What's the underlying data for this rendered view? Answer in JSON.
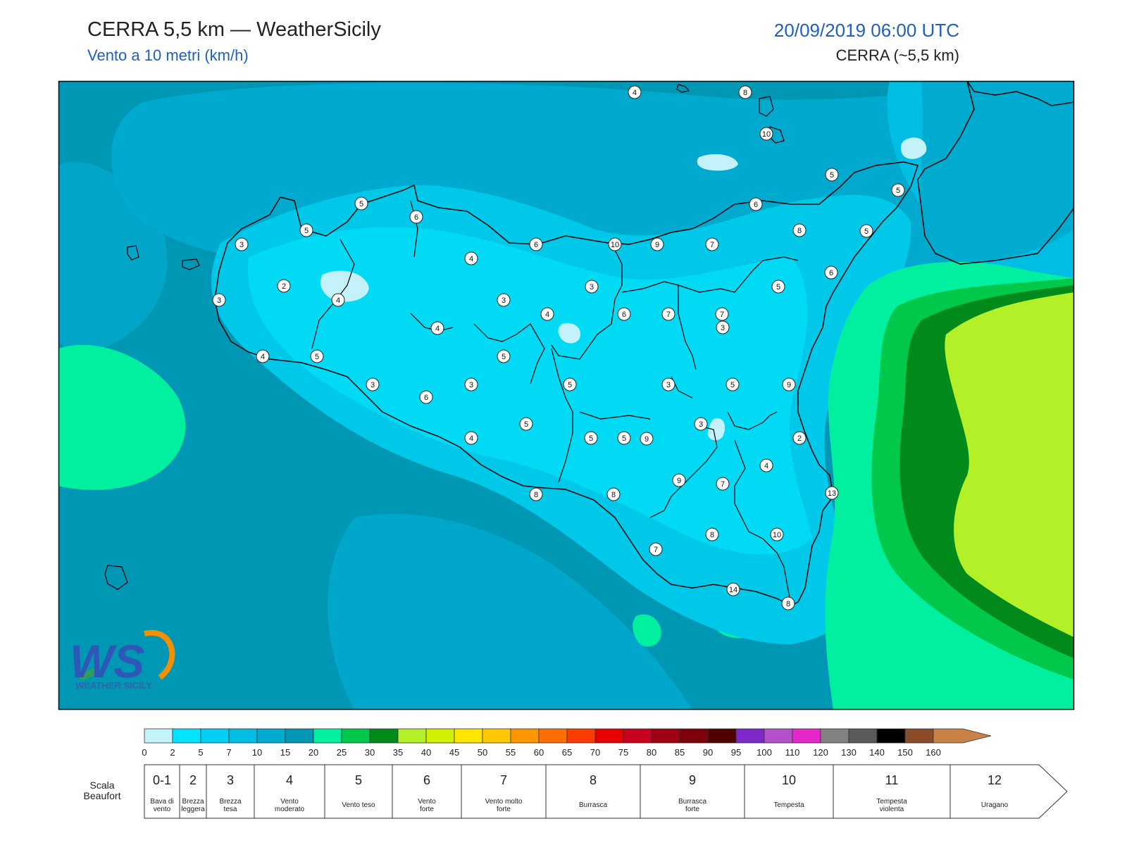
{
  "header": {
    "title": "CERRA 5,5 km — WeatherSicily",
    "subtitle": "Vento a 10 metri (km/h)",
    "datetime": "20/09/2019 06:00 UTC",
    "model": "CERRA (~5,5 km)"
  },
  "logo": {
    "text": "WEATHER SICILY",
    "letters": "WS"
  },
  "colors": {
    "sea_base": "#0097b4",
    "land_low": "#00c8e8",
    "land_mid": "#00daf5",
    "calm": "#c4f2fb",
    "green_light": "#00e890",
    "green": "#00c040",
    "green_dark": "#008a1c",
    "yellow_green": "#b4f028",
    "coast": "#000000"
  },
  "scale": {
    "ticks": [
      "0",
      "2",
      "5",
      "7",
      "10",
      "15",
      "20",
      "25",
      "30",
      "35",
      "40",
      "45",
      "50",
      "55",
      "60",
      "65",
      "70",
      "75",
      "80",
      "85",
      "90",
      "95",
      "100",
      "110",
      "120",
      "130",
      "140",
      "150",
      "160"
    ],
    "colors": [
      "#c4f2fb",
      "#00e4ff",
      "#00d0f5",
      "#00bde3",
      "#00abd0",
      "#0097b4",
      "#00f0a0",
      "#00c84a",
      "#008a1c",
      "#b4f028",
      "#d2f000",
      "#ffe600",
      "#ffc800",
      "#ff9600",
      "#ff6e00",
      "#ff3c00",
      "#e60000",
      "#c8001e",
      "#a00014",
      "#7d000a",
      "#500000",
      "#7d28c8",
      "#b450c8",
      "#e628c8",
      "#828282",
      "#5a5a5a",
      "#000000",
      "#8c4b28",
      "#c88246"
    ]
  },
  "beaufort": {
    "caption": "Scala Beaufort",
    "classes": [
      {
        "num": "0-1",
        "desc": [
          "Bava di",
          "vento"
        ]
      },
      {
        "num": "2",
        "desc": [
          "Brezza",
          "leggera"
        ]
      },
      {
        "num": "3",
        "desc": [
          "Brezza",
          "tesa"
        ]
      },
      {
        "num": "4",
        "desc": [
          "Vento",
          "moderato"
        ]
      },
      {
        "num": "5",
        "desc": [
          "Vento teso"
        ]
      },
      {
        "num": "6",
        "desc": [
          "Vento",
          "forte"
        ]
      },
      {
        "num": "7",
        "desc": [
          "Vento molto",
          "forte"
        ]
      },
      {
        "num": "8",
        "desc": [
          "Burrasca"
        ]
      },
      {
        "num": "9",
        "desc": [
          "Burrasca",
          "forte"
        ]
      },
      {
        "num": "10",
        "desc": [
          "Tempesta"
        ]
      },
      {
        "num": "11",
        "desc": [
          "Tempesta",
          "violenta"
        ]
      },
      {
        "num": "12",
        "desc": [
          "Uragano"
        ]
      }
    ]
  },
  "stations": [
    "4",
    "8",
    "10",
    "5",
    "5",
    "5",
    "6",
    "5",
    "3",
    "6",
    "10",
    "9",
    "7",
    "6",
    "8",
    "5",
    "4",
    "3",
    "5",
    "6",
    "2",
    "4",
    "3",
    "3",
    "4",
    "6",
    "7",
    "7",
    "3",
    "4",
    "4",
    "5",
    "5",
    "3",
    "3",
    "5",
    "3",
    "5",
    "9",
    "6",
    "5",
    "5",
    "3",
    "2",
    "4",
    "5",
    "9",
    "4",
    "7",
    "9",
    "13",
    "8",
    "8",
    "7",
    "8",
    "10",
    "14",
    "8"
  ]
}
